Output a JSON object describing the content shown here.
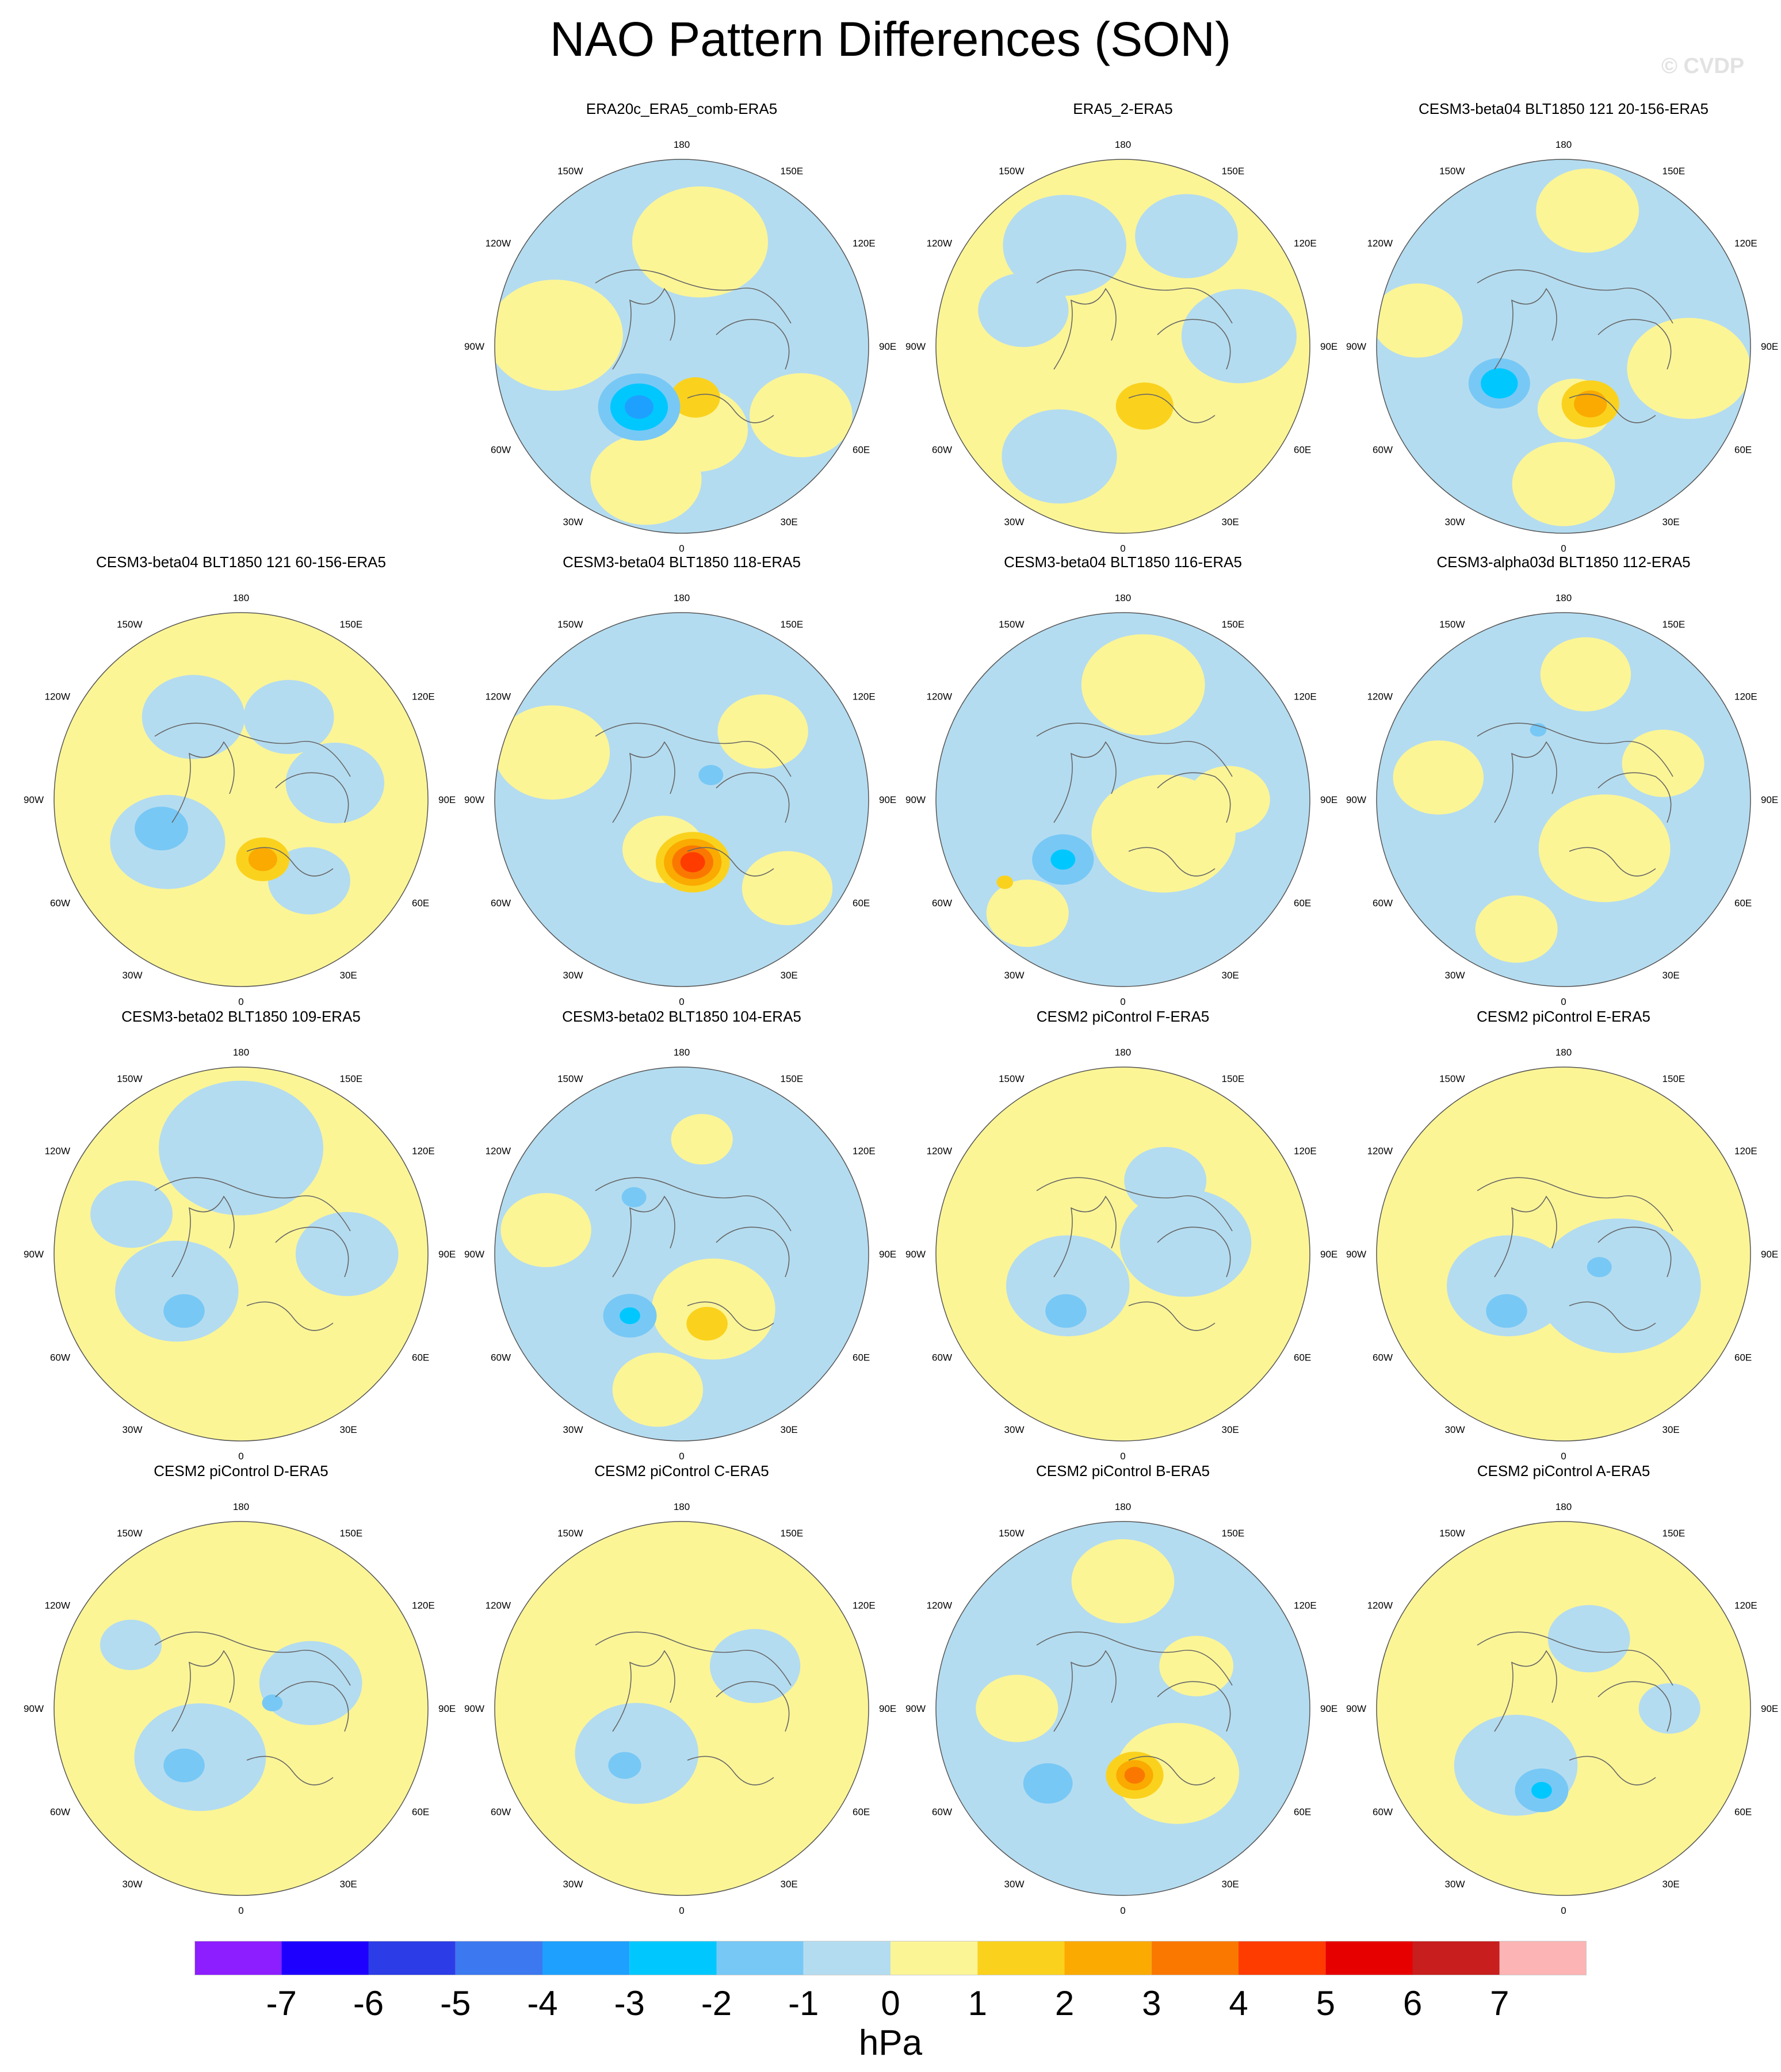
{
  "title": "NAO Pattern Differences (SON)",
  "copyright": "© CVDP",
  "colors": {
    "ocean_base": "#b4dcf0",
    "levels": [
      {
        "min": -7,
        "max": -6,
        "color": "#1e00ff"
      },
      {
        "min": -6,
        "max": -5,
        "color": "#2c3ce6"
      },
      {
        "min": -5,
        "max": -4,
        "color": "#3c78f0"
      },
      {
        "min": -4,
        "max": -3,
        "color": "#1ea0ff"
      },
      {
        "min": -3,
        "max": -2,
        "color": "#00c8ff"
      },
      {
        "min": -2,
        "max": -1,
        "color": "#78c8f5"
      },
      {
        "min": -1,
        "max": 0,
        "color": "#b4dcf0"
      },
      {
        "min": 0,
        "max": 1,
        "color": "#fcf596"
      },
      {
        "min": 1,
        "max": 2,
        "color": "#fad21e"
      },
      {
        "min": 2,
        "max": 3,
        "color": "#faaa00"
      },
      {
        "min": 3,
        "max": 4,
        "color": "#fa7800"
      },
      {
        "min": 4,
        "max": 5,
        "color": "#ff3c00"
      },
      {
        "min": 5,
        "max": 6,
        "color": "#e60000"
      }
    ]
  },
  "longitude_labels": [
    {
      "lon": 180,
      "text": "180"
    },
    {
      "lon": 150,
      "text": "150E"
    },
    {
      "lon": 120,
      "text": "120E"
    },
    {
      "lon": 90,
      "text": "90E"
    },
    {
      "lon": 60,
      "text": "60E"
    },
    {
      "lon": 30,
      "text": "30E"
    },
    {
      "lon": 0,
      "text": "0"
    },
    {
      "lon": -30,
      "text": "30W"
    },
    {
      "lon": -60,
      "text": "60W"
    },
    {
      "lon": -90,
      "text": "90W"
    },
    {
      "lon": -120,
      "text": "120W"
    },
    {
      "lon": -150,
      "text": "150W"
    }
  ],
  "panels": [
    {
      "title": "ERA20c_ERA5_comb-ERA5",
      "slot": [
        0,
        1
      ],
      "background": "neg",
      "features": [
        {
          "lon": 170,
          "lat": 40,
          "r": 0.33,
          "v": 0.5
        },
        {
          "lon": 60,
          "lat": 25,
          "r": 0.25,
          "v": 0.5
        },
        {
          "lon": 10,
          "lat": 50,
          "r": 0.25,
          "v": 0.5
        },
        {
          "lon": -95,
          "lat": 30,
          "r": 0.33,
          "v": 0.5
        },
        {
          "lon": -15,
          "lat": 25,
          "r": 0.27,
          "v": 0.5
        },
        {
          "lon": 15,
          "lat": 65,
          "r": 0.12,
          "v": 1.5
        },
        {
          "lon": -35,
          "lat": 55,
          "r": 0.2,
          "v": -1.5
        },
        {
          "lon": -35,
          "lat": 55,
          "r": 0.14,
          "v": -2.5
        },
        {
          "lon": -35,
          "lat": 55,
          "r": 0.07,
          "v": -3.5
        }
      ]
    },
    {
      "title": "ERA5_2-ERA5",
      "slot": [
        0,
        2
      ],
      "background": "pos",
      "features": [
        {
          "lon": 150,
          "lat": 30,
          "r": 0.25,
          "v": -0.5
        },
        {
          "lon": -150,
          "lat": 35,
          "r": 0.3,
          "v": -0.5
        },
        {
          "lon": 95,
          "lat": 35,
          "r": 0.28,
          "v": -0.5
        },
        {
          "lon": -30,
          "lat": 30,
          "r": 0.28,
          "v": -0.5
        },
        {
          "lon": -110,
          "lat": 40,
          "r": 0.22,
          "v": -0.5
        },
        {
          "lon": 20,
          "lat": 60,
          "r": 0.14,
          "v": 1.5
        }
      ]
    },
    {
      "title": "CESM3-beta04 BLT1850 121 20-156-ERA5",
      "slot": [
        0,
        3
      ],
      "background": "neg",
      "features": [
        {
          "lon": 80,
          "lat": 30,
          "r": 0.3,
          "v": 0.5
        },
        {
          "lon": 170,
          "lat": 25,
          "r": 0.25,
          "v": 0.5
        },
        {
          "lon": -100,
          "lat": 20,
          "r": 0.22,
          "v": 0.5
        },
        {
          "lon": 10,
          "lat": 60,
          "r": 0.18,
          "v": 0.5
        },
        {
          "lon": 0,
          "lat": 25,
          "r": 0.25,
          "v": 0.5
        },
        {
          "lon": 25,
          "lat": 60,
          "r": 0.14,
          "v": 1.5
        },
        {
          "lon": 25,
          "lat": 60,
          "r": 0.08,
          "v": 2.5
        },
        {
          "lon": -60,
          "lat": 55,
          "r": 0.15,
          "v": -1.5
        },
        {
          "lon": -60,
          "lat": 55,
          "r": 0.09,
          "v": -2.5
        }
      ]
    },
    {
      "title": "CESM3-beta04 BLT1850 121 60-156-ERA5",
      "slot": [
        1,
        0
      ],
      "background": "pos",
      "features": [
        {
          "lon": -150,
          "lat": 45,
          "r": 0.25,
          "v": -0.5
        },
        {
          "lon": 150,
          "lat": 45,
          "r": 0.22,
          "v": -0.5
        },
        {
          "lon": 100,
          "lat": 45,
          "r": 0.24,
          "v": -0.5
        },
        {
          "lon": -60,
          "lat": 50,
          "r": 0.28,
          "v": -0.5
        },
        {
          "lon": 40,
          "lat": 40,
          "r": 0.2,
          "v": -0.5
        },
        {
          "lon": -70,
          "lat": 50,
          "r": 0.13,
          "v": -1.5
        },
        {
          "lon": 20,
          "lat": 60,
          "r": 0.13,
          "v": 1.5
        },
        {
          "lon": 20,
          "lat": 60,
          "r": 0.07,
          "v": 2.5
        }
      ]
    },
    {
      "title": "CESM3-beta04 BLT1850 118-ERA5",
      "slot": [
        1,
        1
      ],
      "background": "neg",
      "features": [
        {
          "lon": -110,
          "lat": 25,
          "r": 0.28,
          "v": 0.5
        },
        {
          "lon": 130,
          "lat": 40,
          "r": 0.22,
          "v": 0.5
        },
        {
          "lon": 50,
          "lat": 25,
          "r": 0.22,
          "v": 0.5
        },
        {
          "lon": -20,
          "lat": 65,
          "r": 0.2,
          "v": 0.5
        },
        {
          "lon": 10,
          "lat": 60,
          "r": 0.18,
          "v": 1.5
        },
        {
          "lon": 10,
          "lat": 60,
          "r": 0.14,
          "v": 2.5
        },
        {
          "lon": 10,
          "lat": 60,
          "r": 0.1,
          "v": 3.5
        },
        {
          "lon": 10,
          "lat": 60,
          "r": 0.06,
          "v": 4.5
        },
        {
          "lon": 130,
          "lat": 72,
          "r": 0.06,
          "v": -1.5
        }
      ]
    },
    {
      "title": "CESM3-beta04 BLT1850 116-ERA5",
      "slot": [
        1,
        2
      ],
      "background": "neg",
      "features": [
        {
          "lon": 170,
          "lat": 35,
          "r": 0.3,
          "v": 0.5
        },
        {
          "lon": 50,
          "lat": 65,
          "r": 0.35,
          "v": 0.5
        },
        {
          "lon": 90,
          "lat": 40,
          "r": 0.2,
          "v": 0.5
        },
        {
          "lon": -40,
          "lat": 20,
          "r": 0.2,
          "v": 0.5
        },
        {
          "lon": -45,
          "lat": 50,
          "r": 0.15,
          "v": -1.5
        },
        {
          "lon": -45,
          "lat": 50,
          "r": 0.06,
          "v": -2.5
        },
        {
          "lon": -55,
          "lat": 22,
          "r": 0.04,
          "v": 1.5
        }
      ]
    },
    {
      "title": "CESM3-alpha03d BLT1850 112-ERA5",
      "slot": [
        1,
        3
      ],
      "background": "neg",
      "features": [
        {
          "lon": 170,
          "lat": 30,
          "r": 0.22,
          "v": 0.5
        },
        {
          "lon": 40,
          "lat": 60,
          "r": 0.32,
          "v": 0.5
        },
        {
          "lon": -100,
          "lat": 30,
          "r": 0.22,
          "v": 0.5
        },
        {
          "lon": 110,
          "lat": 40,
          "r": 0.2,
          "v": 0.5
        },
        {
          "lon": -20,
          "lat": 25,
          "r": 0.2,
          "v": 0.5
        },
        {
          "lon": -160,
          "lat": 55,
          "r": 0.04,
          "v": -1.5
        }
      ]
    },
    {
      "title": "CESM3-beta02 BLT1850 109-ERA5",
      "slot": [
        2,
        0
      ],
      "background": "pos",
      "features": [
        {
          "lon": 180,
          "lat": 40,
          "r": 0.4,
          "v": -0.5
        },
        {
          "lon": -60,
          "lat": 55,
          "r": 0.3,
          "v": -0.5
        },
        {
          "lon": 90,
          "lat": 40,
          "r": 0.25,
          "v": -0.5
        },
        {
          "lon": -110,
          "lat": 35,
          "r": 0.2,
          "v": -0.5
        },
        {
          "lon": -45,
          "lat": 52,
          "r": 0.1,
          "v": -1.5
        }
      ]
    },
    {
      "title": "CESM3-beta02 BLT1850 104-ERA5",
      "slot": [
        2,
        1
      ],
      "background": "neg",
      "features": [
        {
          "lon": 170,
          "lat": 35,
          "r": 0.15,
          "v": 0.5
        },
        {
          "lon": 30,
          "lat": 60,
          "r": 0.3,
          "v": 0.5
        },
        {
          "lon": -100,
          "lat": 25,
          "r": 0.22,
          "v": 0.5
        },
        {
          "lon": -10,
          "lat": 25,
          "r": 0.22,
          "v": 0.5
        },
        {
          "lon": 20,
          "lat": 55,
          "r": 0.1,
          "v": 1.5
        },
        {
          "lon": -40,
          "lat": 52,
          "r": 0.13,
          "v": -1.5
        },
        {
          "lon": -40,
          "lat": 52,
          "r": 0.05,
          "v": -2.5
        },
        {
          "lon": -140,
          "lat": 55,
          "r": 0.06,
          "v": -1.5
        }
      ]
    },
    {
      "title": "CESM2 piControl F-ERA5",
      "slot": [
        2,
        2
      ],
      "background": "pos",
      "features": [
        {
          "lon": 100,
          "lat": 60,
          "r": 0.32,
          "v": -0.5
        },
        {
          "lon": -60,
          "lat": 60,
          "r": 0.3,
          "v": -0.5
        },
        {
          "lon": 150,
          "lat": 50,
          "r": 0.2,
          "v": -0.5
        },
        {
          "lon": -45,
          "lat": 52,
          "r": 0.1,
          "v": -1.5
        }
      ]
    },
    {
      "title": "CESM2 piControl E-ERA5",
      "slot": [
        2,
        3
      ],
      "background": "pos",
      "features": [
        {
          "lon": 60,
          "lat": 60,
          "r": 0.4,
          "v": -0.5
        },
        {
          "lon": -60,
          "lat": 60,
          "r": 0.3,
          "v": -0.5
        },
        {
          "lon": -45,
          "lat": 52,
          "r": 0.1,
          "v": -1.5
        },
        {
          "lon": 70,
          "lat": 72,
          "r": 0.06,
          "v": -1.5
        }
      ]
    },
    {
      "title": "CESM2 piControl D-ERA5",
      "slot": [
        3,
        0
      ],
      "background": "pos",
      "features": [
        {
          "lon": -40,
          "lat": 60,
          "r": 0.32,
          "v": -0.5
        },
        {
          "lon": 110,
          "lat": 55,
          "r": 0.25,
          "v": -0.5
        },
        {
          "lon": -120,
          "lat": 30,
          "r": 0.15,
          "v": -0.5
        },
        {
          "lon": -45,
          "lat": 52,
          "r": 0.1,
          "v": -1.5
        },
        {
          "lon": 100,
          "lat": 75,
          "r": 0.05,
          "v": -1.5
        }
      ]
    },
    {
      "title": "CESM2 piControl C-ERA5",
      "slot": [
        3,
        1
      ],
      "background": "pos",
      "features": [
        {
          "lon": -45,
          "lat": 60,
          "r": 0.3,
          "v": -0.5
        },
        {
          "lon": 120,
          "lat": 50,
          "r": 0.22,
          "v": -0.5
        },
        {
          "lon": -45,
          "lat": 52,
          "r": 0.08,
          "v": -1.5
        }
      ]
    },
    {
      "title": "CESM2 piControl B-ERA5",
      "slot": [
        3,
        2
      ],
      "background": "neg",
      "features": [
        {
          "lon": 180,
          "lat": 30,
          "r": 0.25,
          "v": 0.5
        },
        {
          "lon": 40,
          "lat": 50,
          "r": 0.3,
          "v": 0.5
        },
        {
          "lon": -90,
          "lat": 40,
          "r": 0.2,
          "v": 0.5
        },
        {
          "lon": 120,
          "lat": 50,
          "r": 0.18,
          "v": 0.5
        },
        {
          "lon": 10,
          "lat": 58,
          "r": 0.14,
          "v": 1.5
        },
        {
          "lon": 10,
          "lat": 58,
          "r": 0.09,
          "v": 2.5
        },
        {
          "lon": 10,
          "lat": 58,
          "r": 0.05,
          "v": 3.5
        },
        {
          "lon": -45,
          "lat": 40,
          "r": 0.12,
          "v": -1.5
        }
      ]
    },
    {
      "title": "CESM2 piControl A-ERA5",
      "slot": [
        3,
        3
      ],
      "background": "pos",
      "features": [
        {
          "lon": -40,
          "lat": 55,
          "r": 0.3,
          "v": -0.5
        },
        {
          "lon": 160,
          "lat": 55,
          "r": 0.2,
          "v": -0.5
        },
        {
          "lon": 90,
          "lat": 40,
          "r": 0.15,
          "v": -0.5
        },
        {
          "lon": -15,
          "lat": 50,
          "r": 0.13,
          "v": -1.5
        },
        {
          "lon": -15,
          "lat": 50,
          "r": 0.05,
          "v": -2.5
        }
      ]
    }
  ],
  "colorbar": {
    "colors": [
      "#8c1eff",
      "#1e00ff",
      "#2c3ce6",
      "#3c78f0",
      "#1ea0ff",
      "#00c8ff",
      "#78c8f5",
      "#b4dcf0",
      "#fcf596",
      "#fad21e",
      "#faaa00",
      "#fa7800",
      "#ff3c00",
      "#e60000",
      "#c81e1e",
      "#fcb4b4"
    ],
    "labels": [
      "-7",
      "-6",
      "-5",
      "-4",
      "-3",
      "-2",
      "-1",
      "0",
      "1",
      "2",
      "3",
      "4",
      "5",
      "6",
      "7"
    ],
    "units": "hPa"
  }
}
